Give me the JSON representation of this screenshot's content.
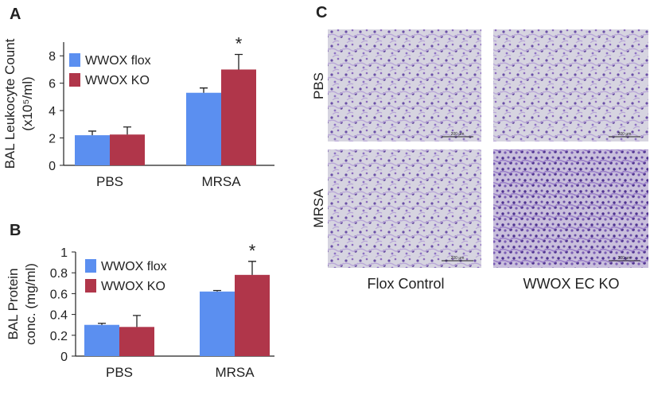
{
  "chart_data": [
    {
      "type": "bar",
      "panel_label": "A",
      "ylabel": [
        "BAL Leukocyte Count",
        "(x10⁵/ml)"
      ],
      "categories": [
        "PBS",
        "MRSA"
      ],
      "series": [
        {
          "name": "WWOX flox",
          "color": "#5b8ff0",
          "values": [
            2.2,
            5.3
          ],
          "errors": [
            0.3,
            0.35
          ],
          "significance": [
            null,
            null
          ]
        },
        {
          "name": "WWOX KO",
          "color": "#b0364a",
          "values": [
            2.25,
            7.0
          ],
          "errors": [
            0.55,
            1.1
          ],
          "significance": [
            null,
            "*"
          ]
        }
      ],
      "ylim": [
        0,
        9
      ],
      "yticks": [
        0,
        2,
        4,
        6,
        8
      ],
      "legend": "upper left"
    },
    {
      "type": "bar",
      "panel_label": "B",
      "ylabel": [
        "BAL Protein",
        "conc. (mg/ml)"
      ],
      "categories": [
        "PBS",
        "MRSA"
      ],
      "series": [
        {
          "name": "WWOX flox",
          "color": "#5b8ff0",
          "values": [
            0.3,
            0.62
          ],
          "errors": [
            0.015,
            0.01
          ],
          "significance": [
            null,
            null
          ]
        },
        {
          "name": "WWOX KO",
          "color": "#b0364a",
          "values": [
            0.28,
            0.78
          ],
          "errors": [
            0.11,
            0.13
          ],
          "significance": [
            null,
            "*"
          ]
        }
      ],
      "ylim": [
        0,
        1
      ],
      "yticks": [
        0,
        0.2,
        0.4,
        0.6,
        0.8,
        1
      ],
      "legend": "upper left"
    }
  ],
  "panel_c": {
    "panel_label": "C",
    "row_labels": [
      "PBS",
      "MRSA"
    ],
    "column_labels": [
      "Flox Control",
      "WWOX EC KO"
    ],
    "scale_bar_label": "200 μm"
  }
}
